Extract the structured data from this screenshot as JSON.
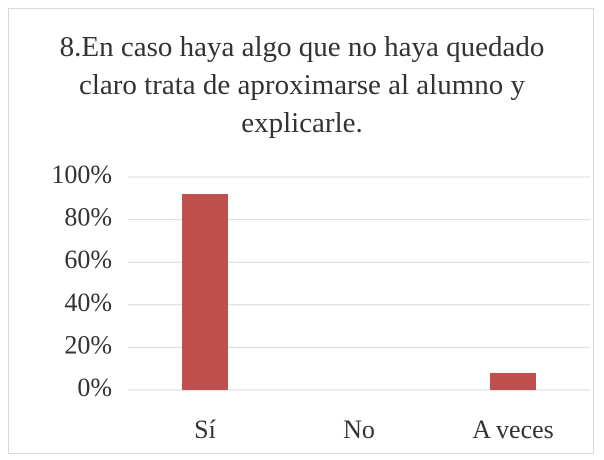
{
  "chart_data": {
    "type": "bar",
    "title": "8.En caso haya algo que no haya quedado claro trata de aproximarse al alumno y explicarle.",
    "categories": [
      "Sí",
      "No",
      "A veces"
    ],
    "values": [
      92,
      0,
      8
    ],
    "color": "#c0504d",
    "ylim": [
      0,
      100
    ],
    "yticks": [
      {
        "value": 0,
        "label": "0%"
      },
      {
        "value": 20,
        "label": "20%"
      },
      {
        "value": 40,
        "label": "40%"
      },
      {
        "value": 60,
        "label": "60%"
      },
      {
        "value": 80,
        "label": "80%"
      },
      {
        "value": 100,
        "label": "100%"
      }
    ],
    "grid": true
  }
}
